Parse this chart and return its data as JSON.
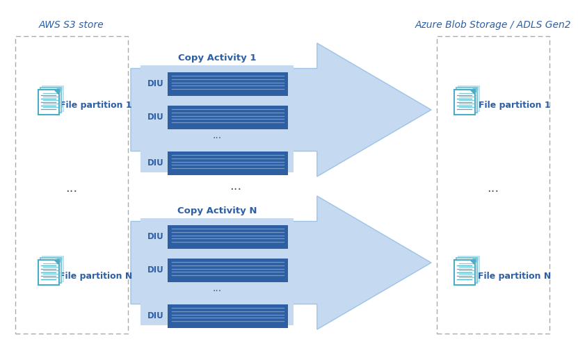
{
  "bg_color": "#ffffff",
  "title_left": "AWS S3 store",
  "title_right": "Azure Blob Storage / ADLS Gen2",
  "copy_activity_1": "Copy Activity 1",
  "copy_activity_n": "Copy Activity N",
  "diu_label": "DIU",
  "dots": "...",
  "file_partition_1": "File partition 1",
  "file_partition_n": "File partition N",
  "arrow_fill": "#c5d9f1",
  "arrow_edge": "#9dc3e6",
  "box_fill": "#c5d9f1",
  "box_edge": "#9dc3e6",
  "diu_bar_color": "#2e5fa3",
  "diu_line_color": "#7399c6",
  "diu_text_color": "#2e5fa3",
  "title_color": "#2e5fa3",
  "label_color": "#2e5fa3",
  "dots_color": "#555555",
  "dashed_border": "#aaaaaa",
  "icon_main": "#4bacc6",
  "icon_light": "#7ec8da",
  "icon_lighter": "#bde3ee",
  "icon_line": "#4bacc6"
}
